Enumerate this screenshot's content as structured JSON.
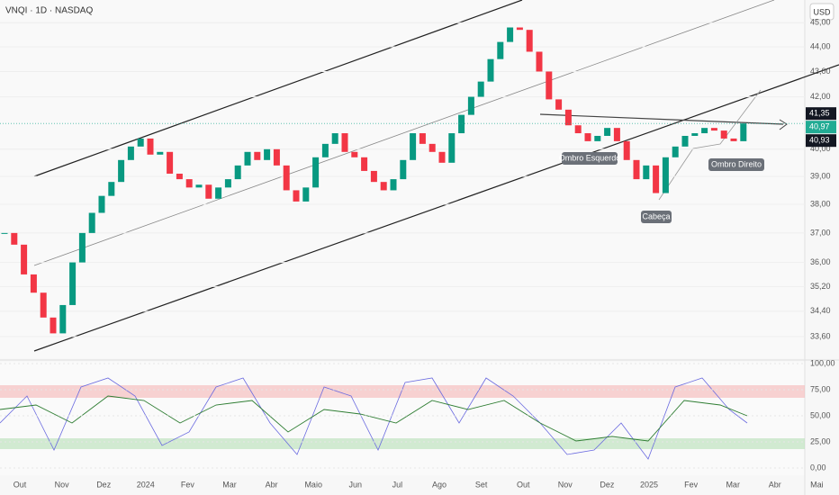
{
  "chart_data": {
    "type": "candlestick",
    "title": "VNQI · 1D · NASDAQ",
    "currency": "USD",
    "log_scale": true,
    "up_color": "#089981",
    "down_color": "#f23645",
    "x_labels": [
      "Out",
      "Nov",
      "Dez",
      "2024",
      "Fev",
      "Mar",
      "Abr",
      "Maio",
      "Jun",
      "Jul",
      "Ago",
      "Set",
      "Out",
      "Nov",
      "Dez",
      "2025",
      "Fev",
      "Mar",
      "Abr",
      "Mai"
    ],
    "ylim": [
      32.93,
      45.96
    ],
    "yticks": [
      {
        "value": 45,
        "label": "45,00"
      },
      {
        "value": 44,
        "label": "44,00"
      },
      {
        "value": 43,
        "label": "43,00"
      },
      {
        "value": 42,
        "label": "42,00"
      },
      {
        "value": 40,
        "label": "40,00"
      },
      {
        "value": 39,
        "label": "39,00"
      },
      {
        "value": 38,
        "label": "38,00"
      },
      {
        "value": 37,
        "label": "37,00"
      },
      {
        "value": 36,
        "label": "36,00"
      },
      {
        "value": 35.2,
        "label": "35,20"
      },
      {
        "value": 34.4,
        "label": "34,40"
      },
      {
        "value": 33.6,
        "label": "33,60"
      }
    ],
    "price_labels": [
      {
        "value": 41.35,
        "label": "41,35",
        "color": "#131722"
      },
      {
        "value": 40.97,
        "label": "40,97",
        "color": "#22ab94"
      },
      {
        "value": 40.93,
        "label": "40,93",
        "color": "#131722"
      }
    ],
    "series": [
      {
        "name": "VNQI",
        "values": [
          37.0,
          36.6,
          35.6,
          35.0,
          34.2,
          33.7,
          34.6,
          36.0,
          37.0,
          37.7,
          38.3,
          38.8,
          39.6,
          40.1,
          40.4,
          39.8,
          39.9,
          39.1,
          38.9,
          38.6,
          38.7,
          38.2,
          38.6,
          38.9,
          39.4,
          39.9,
          39.6,
          40.0,
          39.4,
          38.5,
          38.1,
          38.6,
          39.7,
          40.2,
          40.6,
          39.9,
          39.7,
          39.2,
          38.8,
          38.5,
          38.9,
          39.6,
          40.6,
          40.2,
          39.9,
          39.5,
          40.6,
          41.3,
          42.0,
          42.6,
          43.5,
          44.2,
          44.8,
          44.7,
          43.8,
          43.0,
          41.9,
          41.5,
          40.9,
          40.6,
          40.3,
          40.5,
          40.8,
          40.3,
          39.6,
          38.9,
          39.4,
          38.4,
          39.7,
          40.1,
          40.5,
          40.6,
          40.8,
          40.7,
          40.4,
          40.3,
          40.97
        ]
      }
    ],
    "annotations": [
      {
        "text": "Ombro Esquerdo"
      },
      {
        "text": "Cabeça"
      },
      {
        "text": "Ombro Direito"
      }
    ],
    "osc_ylim": [
      0,
      100
    ],
    "osc_yticks": [
      {
        "value": 100,
        "label": "100,00"
      },
      {
        "value": 75,
        "label": "75,00"
      },
      {
        "value": 50,
        "label": "50,00"
      },
      {
        "value": 25,
        "label": "25,00"
      },
      {
        "value": 0,
        "label": "0,00"
      }
    ]
  }
}
